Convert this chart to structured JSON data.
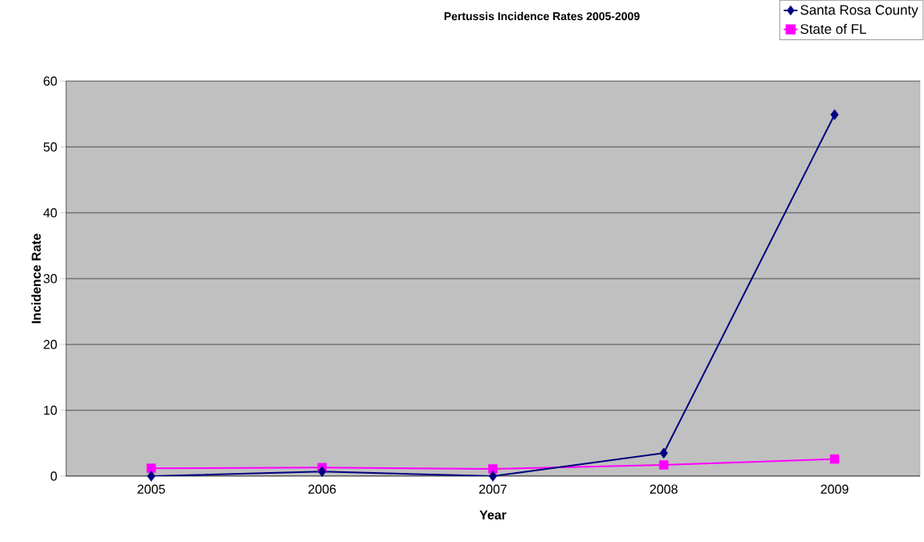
{
  "chart_data": {
    "type": "line",
    "title": "Pertussis Incidence Rates 2005-2009",
    "xlabel": "Year",
    "ylabel": "Incidence Rate",
    "categories": [
      "2005",
      "2006",
      "2007",
      "2008",
      "2009"
    ],
    "series": [
      {
        "name": "Santa Rosa County",
        "color": "#000080",
        "marker": "diamond",
        "values": [
          0,
          0.7,
          0,
          3.5,
          54.9
        ]
      },
      {
        "name": "State of FL",
        "color": "#ff00ff",
        "marker": "square",
        "values": [
          1.2,
          1.3,
          1.1,
          1.7,
          2.6
        ]
      }
    ],
    "ylim": [
      0,
      60
    ],
    "yticks": [
      0,
      10,
      20,
      30,
      40,
      50,
      60
    ],
    "grid": "y",
    "legend": "top right"
  }
}
